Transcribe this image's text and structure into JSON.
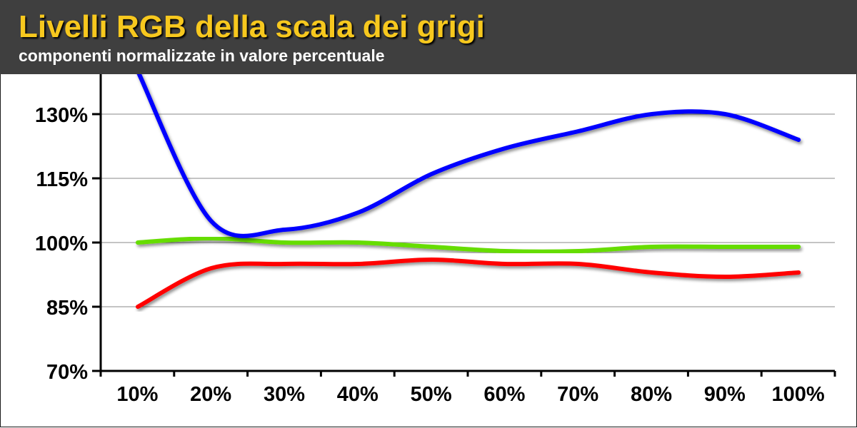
{
  "header": {
    "title": "Livelli RGB della scala dei grigi",
    "subtitle": "componenti normalizzate in valore percentuale"
  },
  "chart_data": {
    "type": "line",
    "title": "Livelli RGB della scala dei grigi",
    "subtitle": "componenti normalizzate in valore percentuale",
    "xlabel": "",
    "ylabel": "",
    "categories": [
      "10%",
      "20%",
      "30%",
      "40%",
      "50%",
      "60%",
      "70%",
      "80%",
      "90%",
      "100%"
    ],
    "yticks": [
      "70%",
      "85%",
      "100%",
      "115%",
      "130%"
    ],
    "ytick_values": [
      70,
      85,
      100,
      115,
      130
    ],
    "ylim": [
      70,
      138
    ],
    "grid": true,
    "legend": "none",
    "series": [
      {
        "color": "#ff0000",
        "values": [
          85,
          94,
          95,
          95,
          96,
          95,
          95,
          93,
          92,
          93
        ]
      },
      {
        "color": "#66dd00",
        "values": [
          100,
          101,
          100,
          100,
          99,
          98,
          98,
          99,
          99,
          99
        ]
      },
      {
        "color": "#0000ff",
        "values": [
          140,
          105,
          103,
          107,
          116,
          122,
          126,
          130,
          130,
          124
        ]
      }
    ]
  }
}
